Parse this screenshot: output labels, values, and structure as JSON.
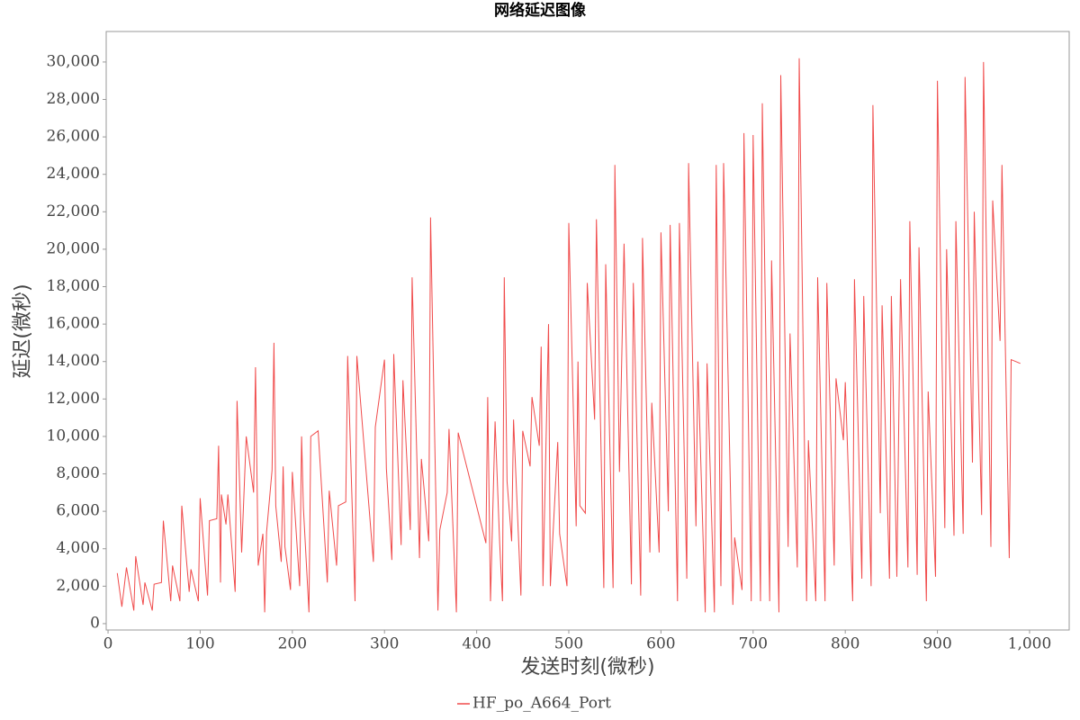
{
  "chart_data": {
    "type": "line",
    "title": "网络延迟图像",
    "x_label": "发送时刻(微秒)",
    "y_label": "延迟(微秒)",
    "xlim": [
      -2,
      1043
    ],
    "ylim": [
      -340,
      31630
    ],
    "xticks": [
      0,
      100,
      200,
      300,
      400,
      500,
      600,
      700,
      800,
      900,
      {
        "value": 1000,
        "label": "1,000"
      }
    ],
    "yticks": [
      0,
      {
        "value": 2000,
        "label": "2,000"
      },
      {
        "value": 4000,
        "label": "4,000"
      },
      {
        "value": 6000,
        "label": "6,000"
      },
      {
        "value": 8000,
        "label": "8,000"
      },
      {
        "value": 10000,
        "label": "10,000"
      },
      {
        "value": 12000,
        "label": "12,000"
      },
      {
        "value": 14000,
        "label": "14,000"
      },
      {
        "value": 16000,
        "label": "16,000"
      },
      {
        "value": 18000,
        "label": "18,000"
      },
      {
        "value": 20000,
        "label": "20,000"
      },
      {
        "value": 22000,
        "label": "22,000"
      },
      {
        "value": 24000,
        "label": "24,000"
      },
      {
        "value": 26000,
        "label": "26,000"
      },
      {
        "value": 28000,
        "label": "28,000"
      },
      {
        "value": 30000,
        "label": "30,000"
      }
    ],
    "x": [
      10,
      15,
      20,
      28,
      30,
      38,
      40,
      48,
      50,
      58,
      60,
      68,
      70,
      78,
      80,
      88,
      90,
      98,
      100,
      108,
      110,
      118,
      120,
      122,
      123,
      128,
      130,
      138,
      140,
      145,
      150,
      158,
      160,
      163,
      168,
      170,
      172,
      178,
      180,
      182,
      188,
      190,
      192,
      198,
      200,
      208,
      210,
      212,
      218,
      220,
      228,
      238,
      240,
      248,
      250,
      258,
      260,
      268,
      270,
      288,
      290,
      300,
      302,
      308,
      310,
      318,
      320,
      328,
      330,
      338,
      340,
      348,
      350,
      358,
      360,
      368,
      370,
      378,
      380,
      410,
      412,
      415,
      420,
      425,
      428,
      430,
      433,
      438,
      440,
      448,
      450,
      458,
      460,
      468,
      470,
      472,
      478,
      480,
      488,
      490,
      498,
      500,
      508,
      510,
      512,
      518,
      520,
      528,
      530,
      538,
      540,
      548,
      550,
      555,
      560,
      568,
      570,
      578,
      580,
      588,
      590,
      598,
      600,
      608,
      610,
      618,
      620,
      628,
      630,
      638,
      640,
      648,
      650,
      658,
      660,
      665,
      668,
      678,
      680,
      688,
      690,
      698,
      700,
      708,
      710,
      718,
      720,
      728,
      730,
      738,
      740,
      748,
      750,
      758,
      760,
      768,
      770,
      778,
      780,
      788,
      790,
      798,
      800,
      808,
      810,
      818,
      820,
      828,
      830,
      838,
      840,
      848,
      850,
      856,
      860,
      868,
      870,
      878,
      880,
      888,
      890,
      898,
      900,
      908,
      910,
      918,
      920,
      928,
      930,
      938,
      940,
      948,
      950,
      958,
      960,
      968,
      970,
      978,
      980,
      990
    ],
    "series": [
      {
        "name": "HF_po_A664_Port",
        "color": "#f04a4a",
        "values": [
          2700,
          900,
          3000,
          700,
          3600,
          1000,
          2200,
          700,
          2100,
          2200,
          5500,
          1200,
          3100,
          1200,
          6300,
          1700,
          2900,
          1200,
          6700,
          1500,
          5500,
          5600,
          9500,
          2200,
          6900,
          5300,
          6900,
          1700,
          11900,
          3800,
          10000,
          7000,
          13700,
          3100,
          4800,
          600,
          4900,
          8200,
          15000,
          6300,
          3300,
          8400,
          4100,
          1800,
          8100,
          2000,
          10000,
          6200,
          600,
          10000,
          10300,
          2200,
          7100,
          3100,
          6300,
          6500,
          14300,
          1200,
          14300,
          3300,
          10500,
          14100,
          8300,
          3400,
          14400,
          4200,
          13000,
          5000,
          18500,
          3500,
          8800,
          4400,
          21700,
          700,
          5000,
          7000,
          10400,
          600,
          10200,
          4300,
          12100,
          1200,
          10800,
          4300,
          1200,
          18500,
          7600,
          4400,
          10900,
          1500,
          10300,
          8400,
          12100,
          9500,
          14800,
          2000,
          16000,
          2000,
          9700,
          4800,
          2000,
          21400,
          5200,
          14000,
          6300,
          5900,
          18200,
          10900,
          21600,
          1900,
          19200,
          1900,
          24500,
          8100,
          20300,
          2100,
          18200,
          1500,
          20600,
          3800,
          11800,
          3800,
          20900,
          6000,
          21300,
          1200,
          21400,
          2400,
          24600,
          5200,
          14000,
          600,
          13900,
          600,
          24500,
          2000,
          24600,
          1000,
          4600,
          1800,
          26200,
          1200,
          26100,
          1200,
          27800,
          1200,
          19400,
          600,
          29300,
          4100,
          15500,
          3000,
          30200,
          1200,
          9800,
          1200,
          18500,
          1200,
          18200,
          3100,
          13100,
          9800,
          12900,
          1200,
          18400,
          2400,
          17500,
          2000,
          27700,
          5900,
          17000,
          2400,
          17500,
          2500,
          18400,
          3000,
          21500,
          2600,
          20100,
          1200,
          12400,
          2500,
          29000,
          5100,
          20000,
          4700,
          21500,
          4800,
          29200,
          8600,
          22000,
          5800,
          30000,
          4100,
          22600,
          15100,
          24500,
          3500,
          14100,
          13900
        ]
      }
    ]
  }
}
